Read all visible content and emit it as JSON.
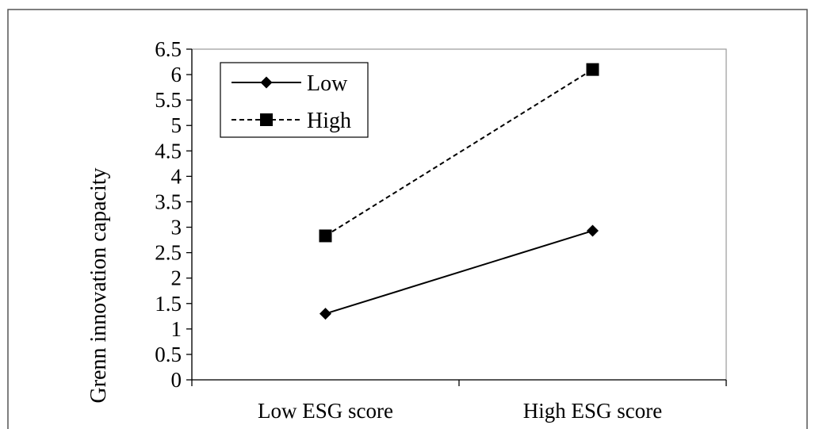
{
  "chart_data": {
    "type": "line",
    "title": "",
    "xlabel": "",
    "ylabel": "Grenn innovation capacity",
    "categories": [
      "Low ESG score",
      "High ESG score"
    ],
    "ylim": [
      0,
      6.5
    ],
    "yticks": [
      "0",
      "0.5",
      "1",
      "1.5",
      "2",
      "2.5",
      "3",
      "3.5",
      "4",
      "4.5",
      "5",
      "5.5",
      "6",
      "6.5"
    ],
    "grid": false,
    "legend_position": "top-left",
    "series": [
      {
        "name": "Low",
        "values": [
          1.3,
          2.93
        ],
        "line_style": "solid",
        "marker": "diamond",
        "color": "#000000"
      },
      {
        "name": "High",
        "values": [
          2.83,
          6.1
        ],
        "line_style": "dashed",
        "marker": "square",
        "color": "#000000"
      }
    ]
  }
}
